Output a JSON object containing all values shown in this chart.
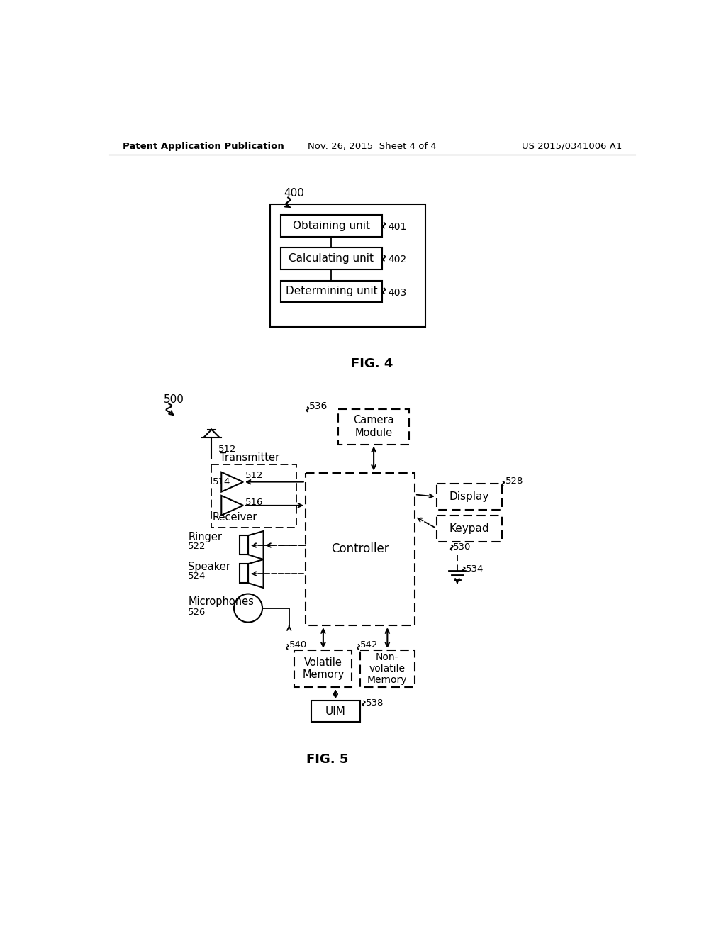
{
  "header_left": "Patent Application Publication",
  "header_mid": "Nov. 26, 2015  Sheet 4 of 4",
  "header_right": "US 2015/0341006 A1",
  "fig4_label": "FIG. 4",
  "fig5_label": "FIG. 5",
  "bg_color": "#ffffff",
  "text_color": "#000000"
}
